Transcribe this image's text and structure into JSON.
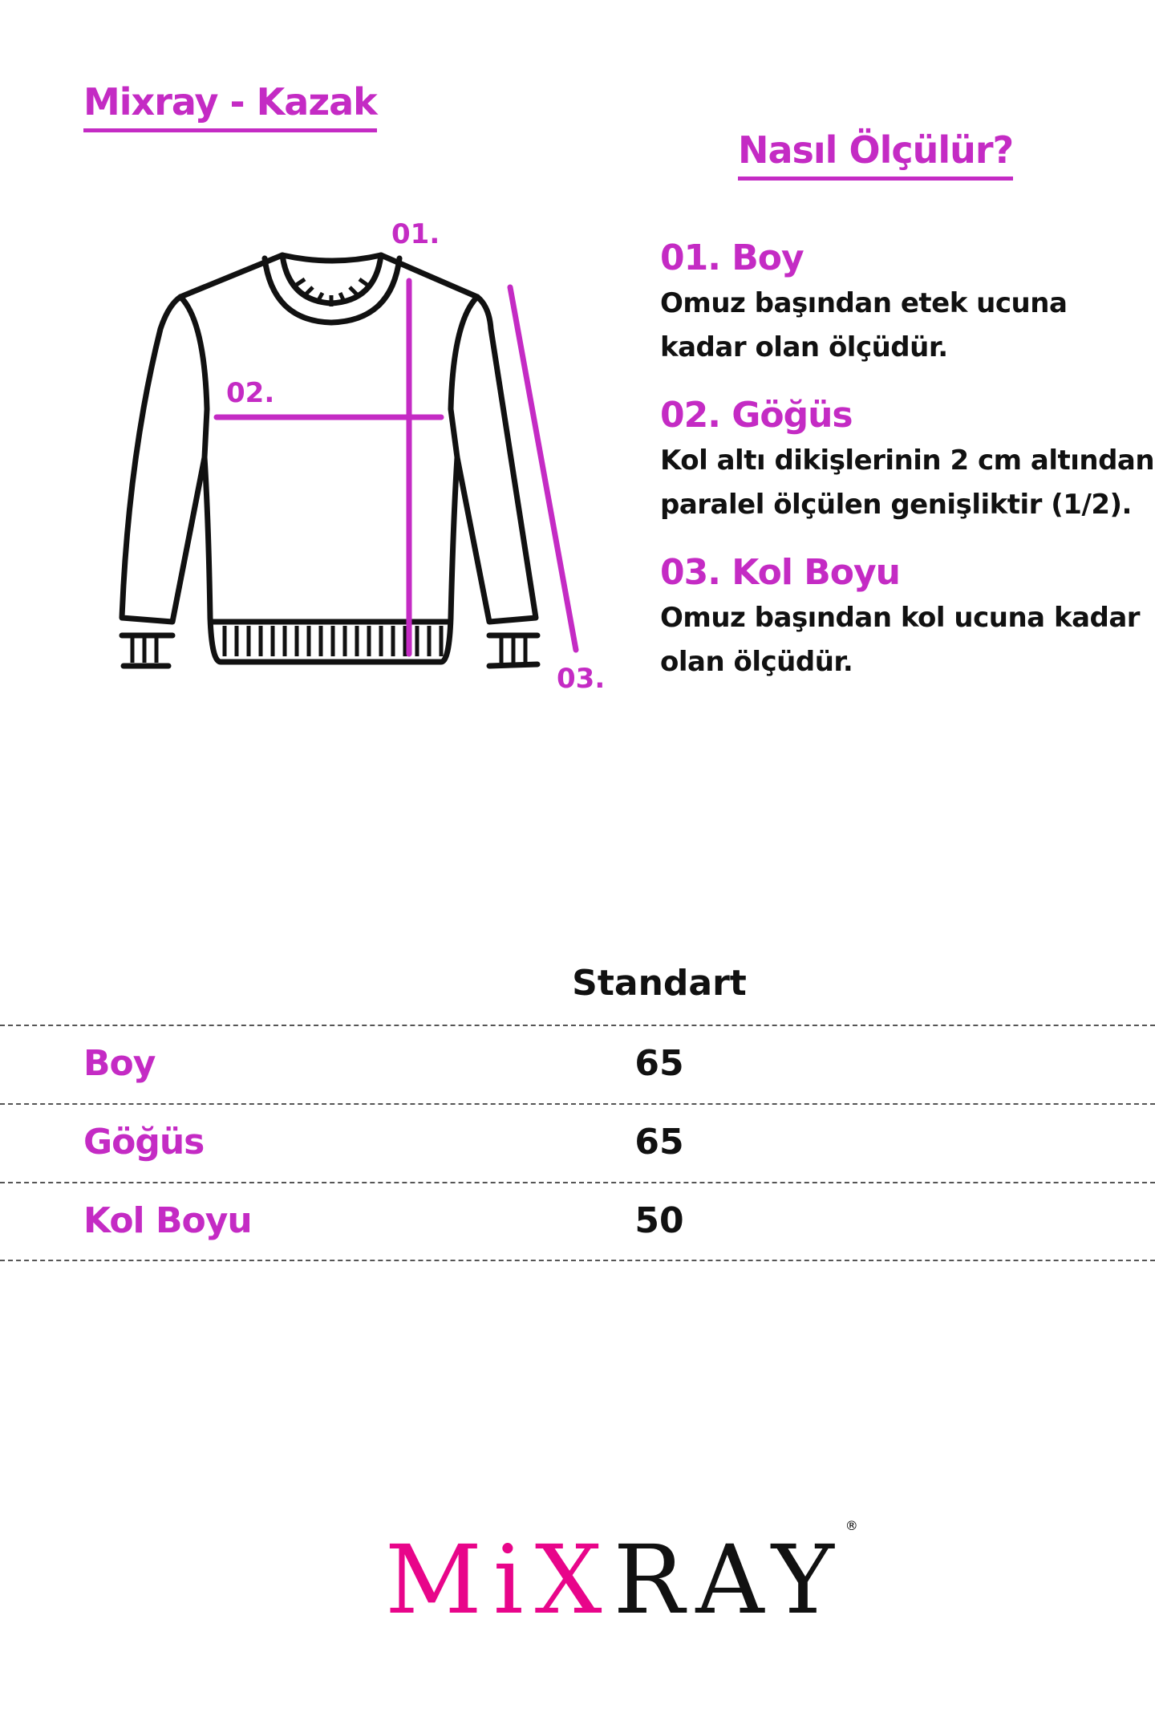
{
  "header": {
    "title": "Mixray - Kazak",
    "how_to_measure": "Nasıl Ölçülür?"
  },
  "diagram": {
    "labels": [
      "01.",
      "02.",
      "03."
    ],
    "accent_color": "#c42bc4"
  },
  "instructions": [
    {
      "heading": "01. Boy",
      "lines": [
        "Omuz başından etek ucuna",
        "kadar olan ölçüdür."
      ]
    },
    {
      "heading": "02. Göğüs",
      "lines": [
        "Kol altı dikişlerinin 2 cm altından",
        "paralel ölçülen genişliktir (1/2)."
      ]
    },
    {
      "heading": "03. Kol Boyu",
      "lines": [
        "Omuz başından kol ucuna kadar",
        "olan ölçüdür."
      ]
    }
  ],
  "size_table": {
    "column": "Standart",
    "rows": [
      {
        "label": "Boy",
        "value": "65"
      },
      {
        "label": "Göğüs",
        "value": "65"
      },
      {
        "label": "Kol Boyu",
        "value": "50"
      }
    ]
  },
  "logo": {
    "text_pink": "MiX",
    "text_black": "RAY",
    "mark": "®",
    "pink": "#e8058a"
  }
}
